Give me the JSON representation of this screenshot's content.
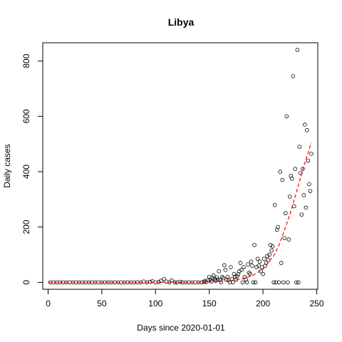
{
  "chart_data": {
    "type": "scatter",
    "title": "Libya",
    "xlabel": "Days since 2020-01-01",
    "ylabel": "Daily cases",
    "xlim": [
      -5,
      251
    ],
    "ylim": [
      -25,
      866
    ],
    "x_ticks": [
      0,
      50,
      100,
      150,
      200,
      250
    ],
    "y_ticks": [
      0,
      200,
      400,
      600,
      800
    ],
    "grid": false,
    "point_color": "#000000",
    "fit_color": "#ff0000",
    "fit_curve": {
      "x": [
        0,
        100,
        140,
        150,
        160,
        170,
        180,
        190,
        200,
        210,
        215,
        220,
        225,
        230,
        235,
        240,
        245
      ],
      "y": [
        0,
        0,
        0,
        1,
        3,
        6,
        12,
        24,
        48,
        96,
        135,
        190,
        245,
        310,
        380,
        445,
        505
      ]
    },
    "points": [
      {
        "x": 2,
        "y": 0
      },
      {
        "x": 5,
        "y": 0
      },
      {
        "x": 8,
        "y": 0
      },
      {
        "x": 11,
        "y": 0
      },
      {
        "x": 14,
        "y": 0
      },
      {
        "x": 17,
        "y": 0
      },
      {
        "x": 20,
        "y": 0
      },
      {
        "x": 23,
        "y": 0
      },
      {
        "x": 26,
        "y": 0
      },
      {
        "x": 29,
        "y": 0
      },
      {
        "x": 32,
        "y": 0
      },
      {
        "x": 35,
        "y": 0
      },
      {
        "x": 38,
        "y": 0
      },
      {
        "x": 41,
        "y": 0
      },
      {
        "x": 44,
        "y": 0
      },
      {
        "x": 47,
        "y": 0
      },
      {
        "x": 50,
        "y": 0
      },
      {
        "x": 53,
        "y": 0
      },
      {
        "x": 56,
        "y": 0
      },
      {
        "x": 59,
        "y": 0
      },
      {
        "x": 62,
        "y": 0
      },
      {
        "x": 65,
        "y": 0
      },
      {
        "x": 68,
        "y": 0
      },
      {
        "x": 71,
        "y": 0
      },
      {
        "x": 74,
        "y": 0
      },
      {
        "x": 77,
        "y": 0
      },
      {
        "x": 80,
        "y": 0
      },
      {
        "x": 83,
        "y": 0
      },
      {
        "x": 86,
        "y": 0
      },
      {
        "x": 89,
        "y": 3
      },
      {
        "x": 92,
        "y": 0
      },
      {
        "x": 95,
        "y": 2
      },
      {
        "x": 97,
        "y": 4
      },
      {
        "x": 100,
        "y": 0
      },
      {
        "x": 103,
        "y": 1
      },
      {
        "x": 105,
        "y": 6
      },
      {
        "x": 108,
        "y": 12
      },
      {
        "x": 110,
        "y": 3
      },
      {
        "x": 113,
        "y": 0
      },
      {
        "x": 115,
        "y": 7
      },
      {
        "x": 118,
        "y": 0
      },
      {
        "x": 120,
        "y": 0
      },
      {
        "x": 123,
        "y": 2
      },
      {
        "x": 125,
        "y": 0
      },
      {
        "x": 128,
        "y": 0
      },
      {
        "x": 131,
        "y": 0
      },
      {
        "x": 134,
        "y": 0
      },
      {
        "x": 137,
        "y": 0
      },
      {
        "x": 140,
        "y": 0
      },
      {
        "x": 143,
        "y": 0
      },
      {
        "x": 145,
        "y": 2
      },
      {
        "x": 146,
        "y": 5
      },
      {
        "x": 147,
        "y": 1
      },
      {
        "x": 149,
        "y": 8
      },
      {
        "x": 150,
        "y": 20
      },
      {
        "x": 151,
        "y": 10
      },
      {
        "x": 152,
        "y": 3
      },
      {
        "x": 153,
        "y": 15
      },
      {
        "x": 154,
        "y": 25
      },
      {
        "x": 155,
        "y": 12
      },
      {
        "x": 156,
        "y": 6
      },
      {
        "x": 157,
        "y": 18
      },
      {
        "x": 158,
        "y": 10
      },
      {
        "x": 159,
        "y": 40
      },
      {
        "x": 160,
        "y": 8
      },
      {
        "x": 161,
        "y": 0
      },
      {
        "x": 162,
        "y": 20
      },
      {
        "x": 163,
        "y": 15
      },
      {
        "x": 164,
        "y": 62
      },
      {
        "x": 165,
        "y": 45
      },
      {
        "x": 166,
        "y": 10
      },
      {
        "x": 167,
        "y": 20
      },
      {
        "x": 168,
        "y": 8
      },
      {
        "x": 169,
        "y": 0
      },
      {
        "x": 170,
        "y": 55
      },
      {
        "x": 171,
        "y": 12
      },
      {
        "x": 172,
        "y": 0
      },
      {
        "x": 173,
        "y": 30
      },
      {
        "x": 174,
        "y": 20
      },
      {
        "x": 175,
        "y": 10
      },
      {
        "x": 176,
        "y": 22
      },
      {
        "x": 177,
        "y": 30
      },
      {
        "x": 178,
        "y": 40
      },
      {
        "x": 179,
        "y": 70
      },
      {
        "x": 180,
        "y": 45
      },
      {
        "x": 181,
        "y": 0
      },
      {
        "x": 182,
        "y": 55
      },
      {
        "x": 183,
        "y": 20
      },
      {
        "x": 184,
        "y": 10
      },
      {
        "x": 185,
        "y": 0
      },
      {
        "x": 186,
        "y": 65
      },
      {
        "x": 187,
        "y": 35
      },
      {
        "x": 188,
        "y": 30
      },
      {
        "x": 189,
        "y": 75
      },
      {
        "x": 190,
        "y": 60
      },
      {
        "x": 191,
        "y": 0
      },
      {
        "x": 192,
        "y": 135
      },
      {
        "x": 193,
        "y": 0
      },
      {
        "x": 194,
        "y": 55
      },
      {
        "x": 195,
        "y": 85
      },
      {
        "x": 196,
        "y": 60
      },
      {
        "x": 197,
        "y": 75
      },
      {
        "x": 198,
        "y": 40
      },
      {
        "x": 199,
        "y": 55
      },
      {
        "x": 200,
        "y": 30
      },
      {
        "x": 201,
        "y": 85
      },
      {
        "x": 202,
        "y": 60
      },
      {
        "x": 203,
        "y": 70
      },
      {
        "x": 204,
        "y": 95
      },
      {
        "x": 205,
        "y": 80
      },
      {
        "x": 206,
        "y": 100
      },
      {
        "x": 207,
        "y": 135
      },
      {
        "x": 208,
        "y": 115
      },
      {
        "x": 209,
        "y": 130
      },
      {
        "x": 210,
        "y": 0
      },
      {
        "x": 211,
        "y": 280
      },
      {
        "x": 212,
        "y": 0
      },
      {
        "x": 213,
        "y": 190
      },
      {
        "x": 214,
        "y": 200
      },
      {
        "x": 215,
        "y": 0
      },
      {
        "x": 216,
        "y": 400
      },
      {
        "x": 217,
        "y": 70
      },
      {
        "x": 218,
        "y": 370
      },
      {
        "x": 219,
        "y": 0
      },
      {
        "x": 220,
        "y": 160
      },
      {
        "x": 221,
        "y": 250
      },
      {
        "x": 222,
        "y": 600
      },
      {
        "x": 223,
        "y": 0
      },
      {
        "x": 224,
        "y": 155
      },
      {
        "x": 225,
        "y": 310
      },
      {
        "x": 226,
        "y": 385
      },
      {
        "x": 227,
        "y": 375
      },
      {
        "x": 228,
        "y": 745
      },
      {
        "x": 229,
        "y": 275
      },
      {
        "x": 230,
        "y": 410
      },
      {
        "x": 231,
        "y": 0
      },
      {
        "x": 232,
        "y": 840
      },
      {
        "x": 233,
        "y": 0
      },
      {
        "x": 234,
        "y": 490
      },
      {
        "x": 235,
        "y": 395
      },
      {
        "x": 236,
        "y": 245
      },
      {
        "x": 237,
        "y": 410
      },
      {
        "x": 238,
        "y": 315
      },
      {
        "x": 239,
        "y": 570
      },
      {
        "x": 240,
        "y": 270
      },
      {
        "x": 241,
        "y": 550
      },
      {
        "x": 242,
        "y": 440
      },
      {
        "x": 243,
        "y": 355
      },
      {
        "x": 244,
        "y": 330
      },
      {
        "x": 245,
        "y": 465
      }
    ]
  }
}
